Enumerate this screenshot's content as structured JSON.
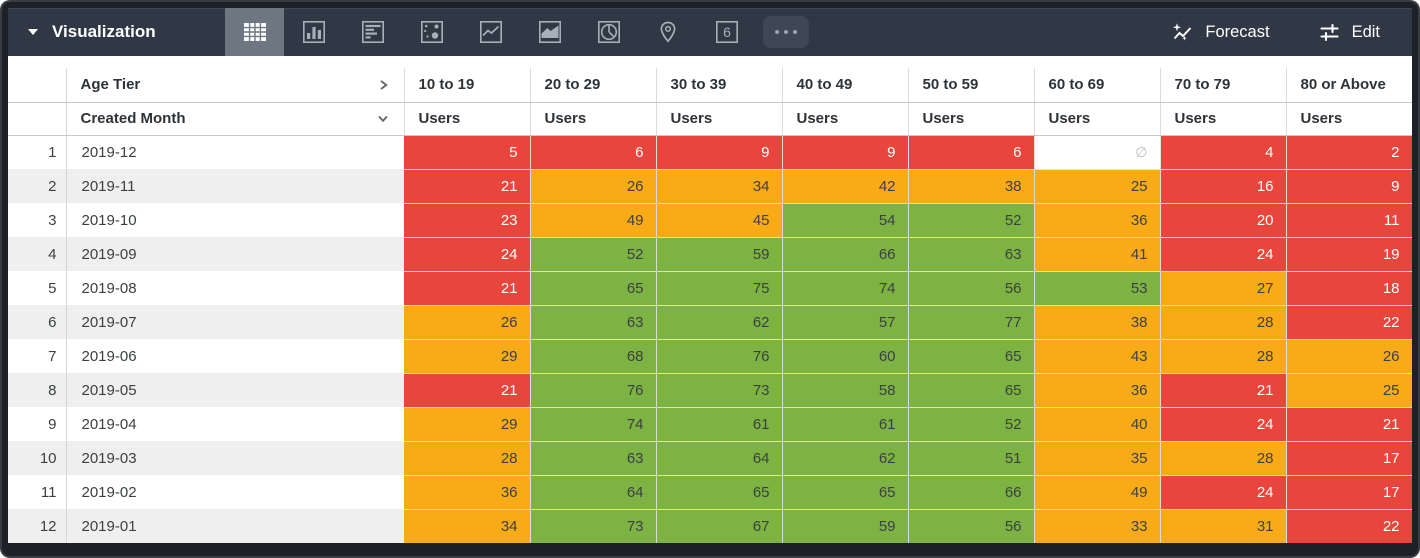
{
  "header": {
    "title": "Visualization",
    "forecast_label": "Forecast",
    "edit_label": "Edit",
    "single_value_glyph": "6",
    "viz_types": [
      {
        "id": "table",
        "selected": true
      },
      {
        "id": "column-chart",
        "selected": false
      },
      {
        "id": "bar-chart",
        "selected": false
      },
      {
        "id": "scatter-plot",
        "selected": false
      },
      {
        "id": "line-chart",
        "selected": false
      },
      {
        "id": "area-chart",
        "selected": false
      },
      {
        "id": "pie-chart",
        "selected": false
      },
      {
        "id": "map",
        "selected": false
      },
      {
        "id": "single-value",
        "selected": false
      }
    ]
  },
  "table": {
    "pivot_field": "Age Tier",
    "row_field": "Created Month",
    "measure_label": "Users",
    "null_symbol": "∅",
    "tiers": [
      "10 to 19",
      "20 to 29",
      "30 to 39",
      "40 to 49",
      "50 to 59",
      "60 to 69",
      "70 to 79",
      "80 or Above"
    ],
    "rows": [
      {
        "num": "1",
        "month": "2019-12",
        "cells": [
          [
            "5",
            "r"
          ],
          [
            "6",
            "r"
          ],
          [
            "9",
            "r"
          ],
          [
            "9",
            "r"
          ],
          [
            "6",
            "r"
          ],
          [
            "∅",
            "n"
          ],
          [
            "4",
            "r"
          ],
          [
            "2",
            "r"
          ]
        ]
      },
      {
        "num": "2",
        "month": "2019-11",
        "cells": [
          [
            "21",
            "r"
          ],
          [
            "26",
            "o"
          ],
          [
            "34",
            "o"
          ],
          [
            "42",
            "o"
          ],
          [
            "38",
            "o"
          ],
          [
            "25",
            "o"
          ],
          [
            "16",
            "r"
          ],
          [
            "9",
            "r"
          ]
        ]
      },
      {
        "num": "3",
        "month": "2019-10",
        "cells": [
          [
            "23",
            "r"
          ],
          [
            "49",
            "o"
          ],
          [
            "45",
            "o"
          ],
          [
            "54",
            "g"
          ],
          [
            "52",
            "g"
          ],
          [
            "36",
            "o"
          ],
          [
            "20",
            "r"
          ],
          [
            "11",
            "r"
          ]
        ]
      },
      {
        "num": "4",
        "month": "2019-09",
        "cells": [
          [
            "24",
            "r"
          ],
          [
            "52",
            "g"
          ],
          [
            "59",
            "g"
          ],
          [
            "66",
            "g"
          ],
          [
            "63",
            "g"
          ],
          [
            "41",
            "o"
          ],
          [
            "24",
            "r"
          ],
          [
            "19",
            "r"
          ]
        ]
      },
      {
        "num": "5",
        "month": "2019-08",
        "cells": [
          [
            "21",
            "r"
          ],
          [
            "65",
            "g"
          ],
          [
            "75",
            "g"
          ],
          [
            "74",
            "g"
          ],
          [
            "56",
            "g"
          ],
          [
            "53",
            "g"
          ],
          [
            "27",
            "o"
          ],
          [
            "18",
            "r"
          ]
        ]
      },
      {
        "num": "6",
        "month": "2019-07",
        "cells": [
          [
            "26",
            "o"
          ],
          [
            "63",
            "g"
          ],
          [
            "62",
            "g"
          ],
          [
            "57",
            "g"
          ],
          [
            "77",
            "g"
          ],
          [
            "38",
            "o"
          ],
          [
            "28",
            "o"
          ],
          [
            "22",
            "r"
          ]
        ]
      },
      {
        "num": "7",
        "month": "2019-06",
        "cells": [
          [
            "29",
            "o"
          ],
          [
            "68",
            "g"
          ],
          [
            "76",
            "g"
          ],
          [
            "60",
            "g"
          ],
          [
            "65",
            "g"
          ],
          [
            "43",
            "o"
          ],
          [
            "28",
            "o"
          ],
          [
            "26",
            "o"
          ]
        ]
      },
      {
        "num": "8",
        "month": "2019-05",
        "cells": [
          [
            "21",
            "r"
          ],
          [
            "76",
            "g"
          ],
          [
            "73",
            "g"
          ],
          [
            "58",
            "g"
          ],
          [
            "65",
            "g"
          ],
          [
            "36",
            "o"
          ],
          [
            "21",
            "r"
          ],
          [
            "25",
            "o"
          ]
        ]
      },
      {
        "num": "9",
        "month": "2019-04",
        "cells": [
          [
            "29",
            "o"
          ],
          [
            "74",
            "g"
          ],
          [
            "61",
            "g"
          ],
          [
            "61",
            "g"
          ],
          [
            "52",
            "g"
          ],
          [
            "40",
            "o"
          ],
          [
            "24",
            "r"
          ],
          [
            "21",
            "r"
          ]
        ]
      },
      {
        "num": "10",
        "month": "2019-03",
        "cells": [
          [
            "28",
            "o"
          ],
          [
            "63",
            "g"
          ],
          [
            "64",
            "g"
          ],
          [
            "62",
            "g"
          ],
          [
            "51",
            "g"
          ],
          [
            "35",
            "o"
          ],
          [
            "28",
            "o"
          ],
          [
            "17",
            "r"
          ]
        ]
      },
      {
        "num": "11",
        "month": "2019-02",
        "cells": [
          [
            "36",
            "o"
          ],
          [
            "64",
            "g"
          ],
          [
            "65",
            "g"
          ],
          [
            "65",
            "g"
          ],
          [
            "66",
            "g"
          ],
          [
            "49",
            "o"
          ],
          [
            "24",
            "r"
          ],
          [
            "17",
            "r"
          ]
        ]
      },
      {
        "num": "12",
        "month": "2019-01",
        "cells": [
          [
            "34",
            "o"
          ],
          [
            "73",
            "g"
          ],
          [
            "67",
            "g"
          ],
          [
            "59",
            "g"
          ],
          [
            "56",
            "g"
          ],
          [
            "33",
            "o"
          ],
          [
            "31",
            "o"
          ],
          [
            "22",
            "r"
          ]
        ]
      }
    ]
  },
  "colors": {
    "red": "#e8453c",
    "orange": "#f9ab17",
    "green": "#7cb342",
    "topbar": "#2f3844",
    "tile_selected": "#6e7682",
    "icon": "#a7b0ba",
    "row_alt": "#efefef",
    "cell_text": "#3c4043",
    "null_text": "#b7bcc1"
  }
}
